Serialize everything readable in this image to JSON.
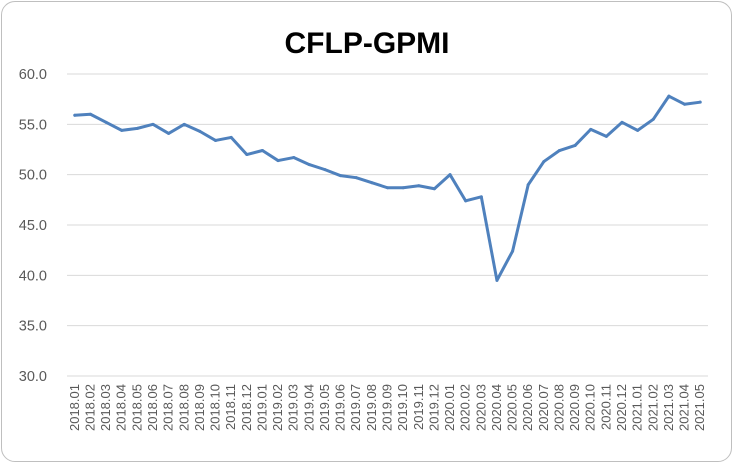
{
  "chart_data": {
    "type": "line",
    "title": "CFLP-GPMI",
    "xlabel": "",
    "ylabel": "",
    "ylim": [
      30,
      60
    ],
    "yticks": [
      "30.0",
      "35.0",
      "40.0",
      "45.0",
      "50.0",
      "55.0",
      "60.0"
    ],
    "grid": true,
    "legend": "none",
    "line_color": "#4f81bd",
    "categories": [
      "2018.01",
      "2018.02",
      "2018.03",
      "2018.04",
      "2018.05",
      "2018.06",
      "2018.07",
      "2018.08",
      "2018.09",
      "2018.10",
      "2018.11",
      "2018.12",
      "2019.01",
      "2019.02",
      "2019.03",
      "2019.04",
      "2019.05",
      "2019.06",
      "2019.07",
      "2019.08",
      "2019.09",
      "2019.10",
      "2019.11",
      "2019.12",
      "2020.01",
      "2020.02",
      "2020.03",
      "2020.04",
      "2020.05",
      "2020.06",
      "2020.07",
      "2020.08",
      "2020.09",
      "2020.10",
      "2020.11",
      "2020.12",
      "2021.01",
      "2021.02",
      "2021.03",
      "2021.04",
      "2021.05"
    ],
    "series": [
      {
        "values": [
          55.9,
          56.0,
          55.2,
          54.4,
          54.6,
          55.0,
          54.1,
          55.0,
          54.3,
          53.4,
          53.7,
          52.0,
          52.4,
          51.4,
          51.7,
          51.0,
          50.5,
          49.9,
          49.7,
          49.2,
          48.7,
          48.7,
          48.9,
          48.6,
          50.0,
          47.4,
          47.8,
          39.5,
          42.4,
          49.0,
          51.3,
          52.4,
          52.9,
          54.5,
          53.8,
          55.2,
          54.4,
          55.5,
          57.8,
          57.0,
          57.2
        ]
      }
    ]
  }
}
